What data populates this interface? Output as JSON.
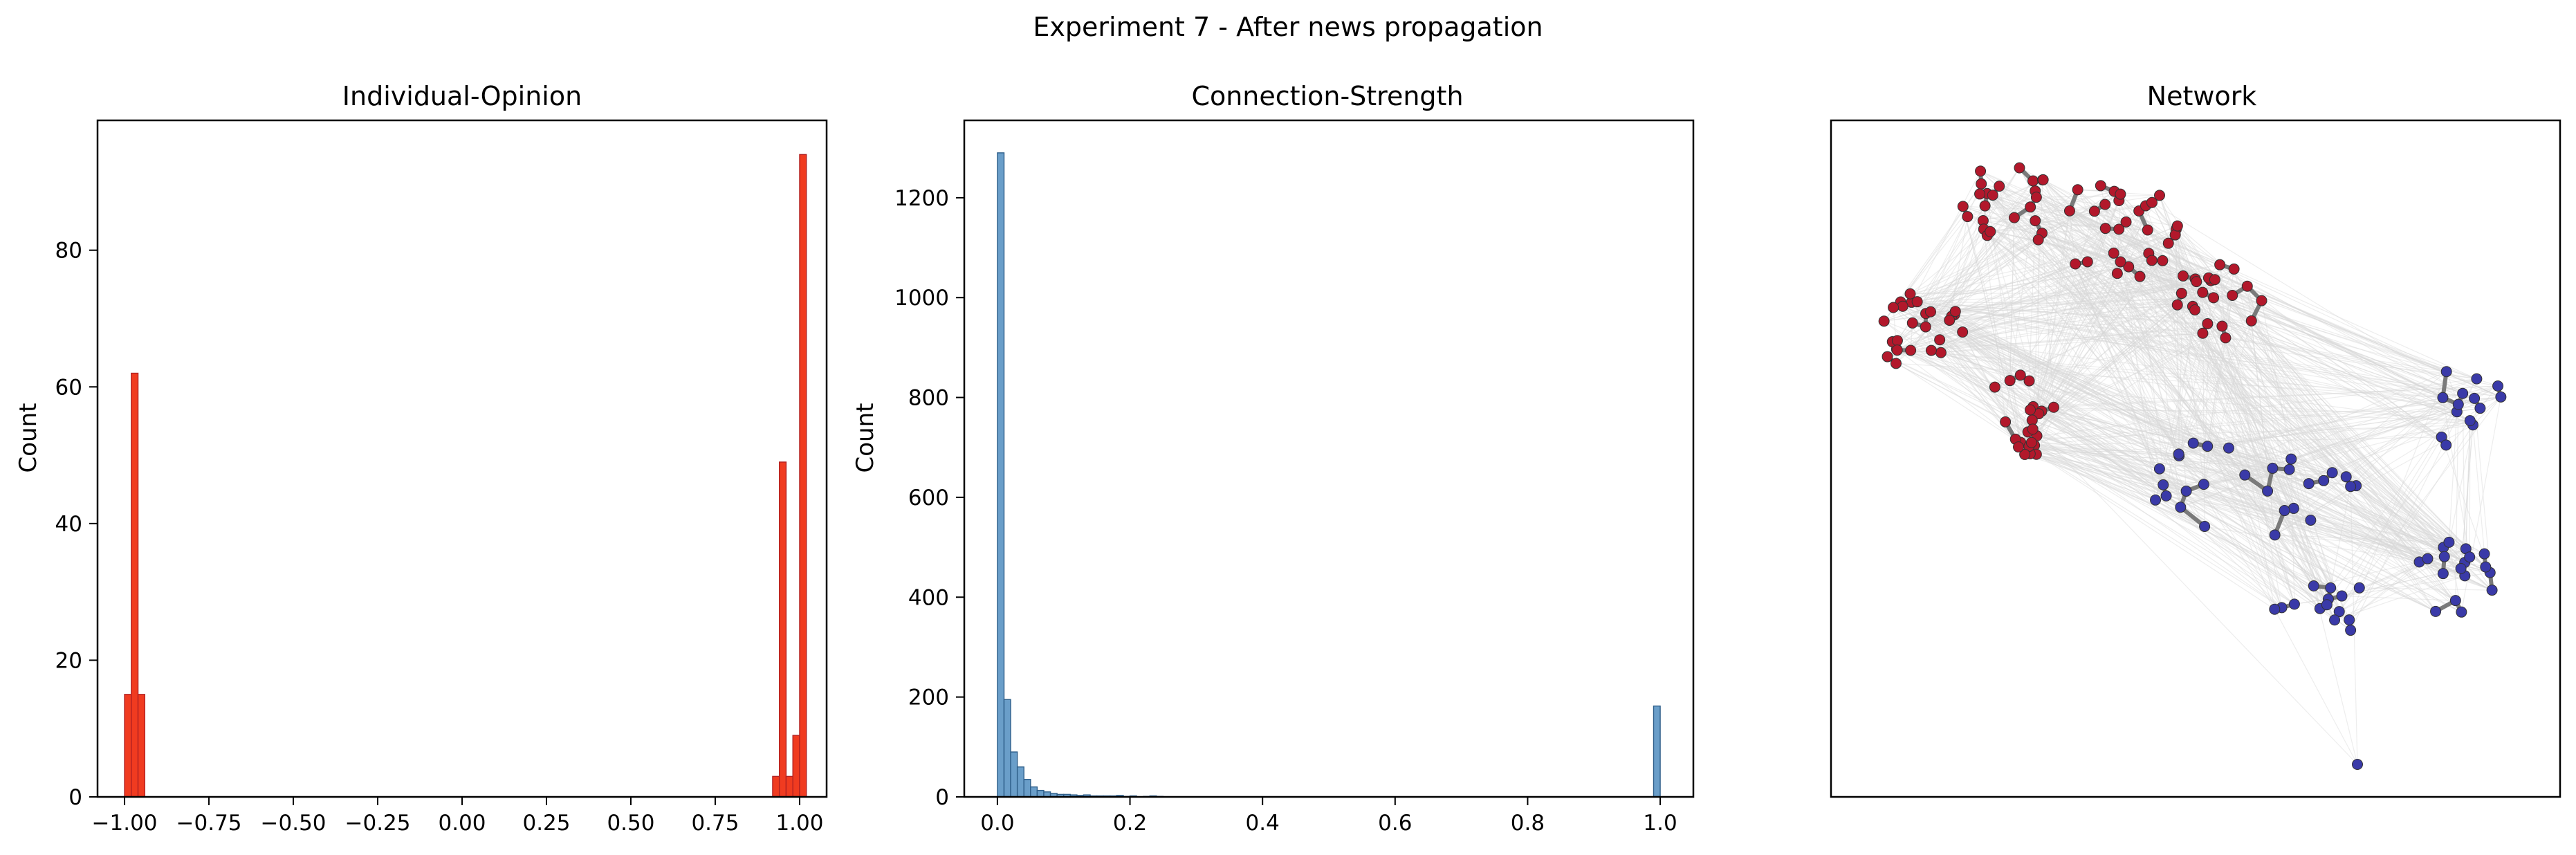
{
  "suptitle": "Experiment 7 - After news propagation",
  "chart_data": [
    {
      "type": "bar",
      "title": "Individual-Opinion",
      "xlabel": "",
      "ylabel": "Count",
      "xlim": [
        -1.08,
        1.08
      ],
      "ylim": [
        0,
        99
      ],
      "xticks": [
        -1.0,
        -0.75,
        -0.5,
        -0.25,
        0.0,
        0.25,
        0.5,
        0.75,
        1.0
      ],
      "xticklabels": [
        "−1.00",
        "−0.75",
        "−0.50",
        "−0.25",
        "0.00",
        "0.25",
        "0.50",
        "0.75",
        "1.00"
      ],
      "yticks": [
        0,
        20,
        40,
        60,
        80
      ],
      "yticklabels": [
        "0",
        "20",
        "40",
        "60",
        "80"
      ],
      "bin_width": 0.02,
      "bar_color": "#f03b20",
      "edge_color": "#b22222",
      "bins": [
        {
          "x": -1.0,
          "count": 15
        },
        {
          "x": -0.98,
          "count": 62
        },
        {
          "x": -0.96,
          "count": 15
        },
        {
          "x": 0.92,
          "count": 3
        },
        {
          "x": 0.94,
          "count": 49
        },
        {
          "x": 0.96,
          "count": 3
        },
        {
          "x": 0.98,
          "count": 9
        },
        {
          "x": 1.0,
          "count": 94
        }
      ]
    },
    {
      "type": "bar",
      "title": "Connection-Strength",
      "xlabel": "",
      "ylabel": "Count",
      "xlim": [
        -0.05,
        1.05
      ],
      "ylim": [
        0,
        1355
      ],
      "xticks": [
        0.0,
        0.2,
        0.4,
        0.6,
        0.8,
        1.0
      ],
      "xticklabels": [
        "0.0",
        "0.2",
        "0.4",
        "0.6",
        "0.8",
        "1.0"
      ],
      "yticks": [
        0,
        200,
        400,
        600,
        800,
        1000,
        1200
      ],
      "yticklabels": [
        "0",
        "200",
        "400",
        "600",
        "800",
        "1000",
        "1200"
      ],
      "bin_width": 0.01,
      "bar_color": "#6a9ec9",
      "edge_color": "#2f5f8a",
      "bins": [
        {
          "x": 0.0,
          "count": 1290
        },
        {
          "x": 0.01,
          "count": 195
        },
        {
          "x": 0.02,
          "count": 90
        },
        {
          "x": 0.03,
          "count": 60
        },
        {
          "x": 0.04,
          "count": 35
        },
        {
          "x": 0.05,
          "count": 20
        },
        {
          "x": 0.06,
          "count": 13
        },
        {
          "x": 0.07,
          "count": 10
        },
        {
          "x": 0.08,
          "count": 7
        },
        {
          "x": 0.09,
          "count": 5
        },
        {
          "x": 0.1,
          "count": 5
        },
        {
          "x": 0.11,
          "count": 4
        },
        {
          "x": 0.12,
          "count": 3
        },
        {
          "x": 0.13,
          "count": 4
        },
        {
          "x": 0.14,
          "count": 2
        },
        {
          "x": 0.15,
          "count": 2
        },
        {
          "x": 0.16,
          "count": 2
        },
        {
          "x": 0.17,
          "count": 2
        },
        {
          "x": 0.18,
          "count": 3
        },
        {
          "x": 0.19,
          "count": 1
        },
        {
          "x": 0.2,
          "count": 2
        },
        {
          "x": 0.22,
          "count": 1
        },
        {
          "x": 0.23,
          "count": 2
        },
        {
          "x": 0.24,
          "count": 1
        },
        {
          "x": 0.99,
          "count": 182
        }
      ]
    },
    {
      "type": "network",
      "title": "Network",
      "node_colors": {
        "positive": "#b2182b",
        "negative": "#3a3aa8"
      },
      "edge_colors": {
        "strong": "#7a7a7a",
        "weak": "#d6d6d6"
      },
      "groups": [
        {
          "label": "positive",
          "node_count": 125
        },
        {
          "label": "negative",
          "node_count": 75
        }
      ]
    }
  ]
}
